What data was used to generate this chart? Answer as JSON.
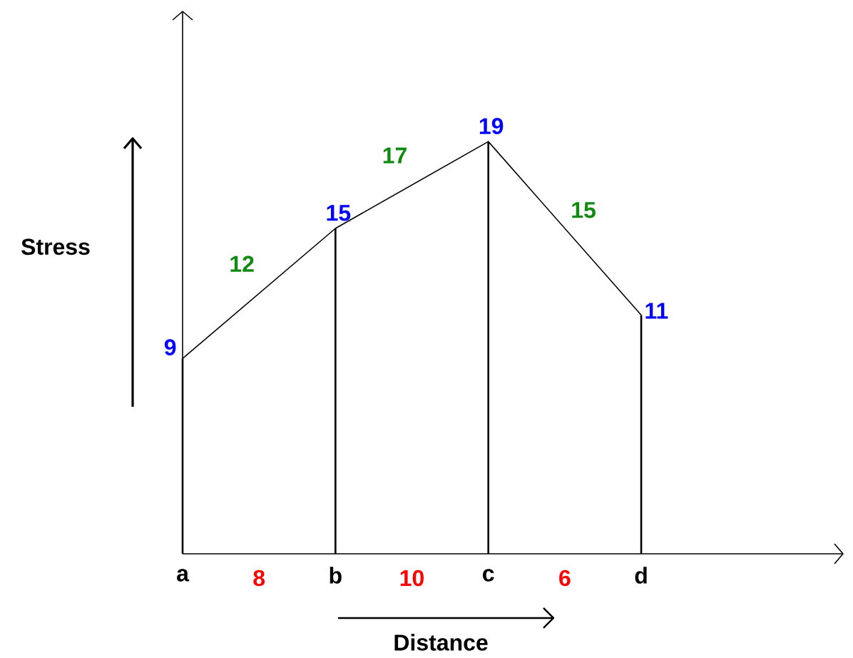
{
  "chart_data": {
    "type": "line",
    "xlabel": "Distance",
    "ylabel": "Stress",
    "categories": [
      "a",
      "b",
      "c",
      "d"
    ],
    "ylim": [
      0,
      25
    ],
    "tick_labels": "x",
    "marker": "none",
    "line_style": "solid",
    "series": [
      {
        "color": "#000000",
        "values": [
          9,
          15,
          19,
          11
        ],
        "value_labels": [
          "9",
          "15",
          "19",
          "11"
        ]
      },
      {
        "type": "bar",
        "color": "#000000",
        "values": [
          9,
          15,
          19,
          11
        ]
      }
    ],
    "annotations": [
      "12",
      "17",
      "15",
      "8",
      "10",
      "6"
    ]
  }
}
